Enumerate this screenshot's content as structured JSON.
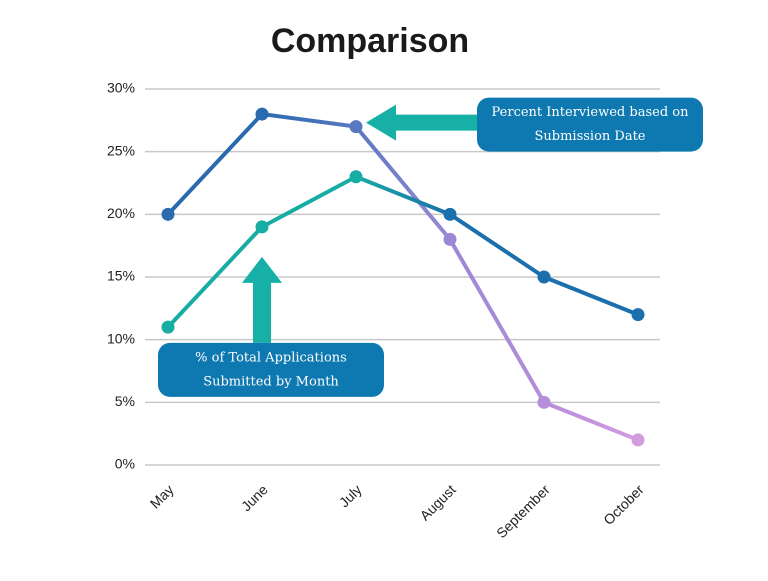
{
  "chart_data": {
    "type": "line",
    "title": "Comparison",
    "categories": [
      "May",
      "June",
      "July",
      "August",
      "September",
      "October"
    ],
    "series": [
      {
        "values": [
          20,
          28,
          27,
          18,
          5,
          2
        ],
        "point_colors": [
          "#2a6aae",
          "#2a6aae",
          "#5a78c2",
          "#9a88d4",
          "#b58ddb",
          "#d59be0"
        ]
      },
      {
        "values": [
          11,
          19,
          23,
          20,
          15,
          12
        ],
        "point_colors": [
          "#17aca4",
          "#17aca4",
          "#17aca4",
          "#1a6fac",
          "#1a6fac",
          "#1a6fac"
        ]
      }
    ],
    "ylim": [
      0,
      30
    ],
    "yticks": [
      {
        "value": 0,
        "label": "0%"
      },
      {
        "value": 5,
        "label": "5%"
      },
      {
        "value": 10,
        "label": "10%"
      },
      {
        "value": 15,
        "label": "15%"
      },
      {
        "value": 20,
        "label": "20%"
      },
      {
        "value": 25,
        "label": "25%"
      },
      {
        "value": 30,
        "label": "30%"
      }
    ],
    "grid": true,
    "annotations": [
      {
        "lines": [
          "Percent Interviewed based on",
          "Submission Date"
        ],
        "series": 0,
        "point": 2,
        "arrow": "left",
        "color": "#0e78b0",
        "arrow_color": "#17b0a6"
      },
      {
        "lines": [
          "% of Total Applications",
          "Submitted by Month"
        ],
        "series": 1,
        "point": 1,
        "arrow": "up",
        "color": "#0e78b0",
        "arrow_color": "#17b0a6"
      }
    ]
  }
}
